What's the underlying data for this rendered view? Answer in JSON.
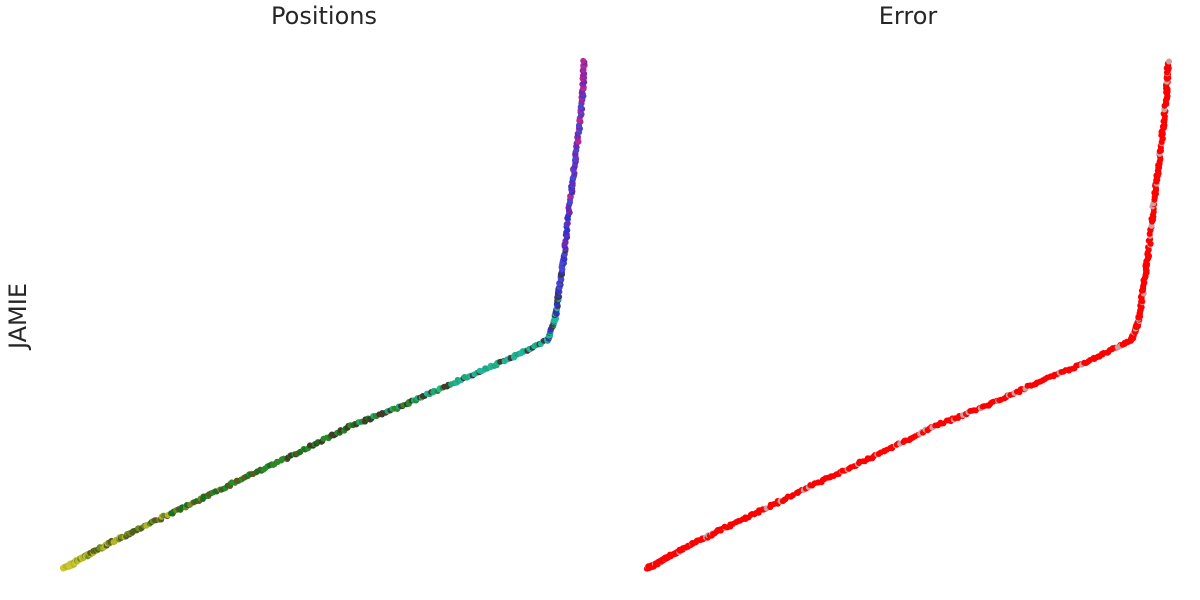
{
  "chart_data": [
    {
      "type": "scatter",
      "title": "Positions",
      "ylabel": "JAMIE",
      "axes_visible": false,
      "grid": false,
      "point_colors": [
        "#c8c832",
        "#b4b428",
        "#6e8c23",
        "#5a5a1e",
        "#1e6e1e",
        "#2a8a2a",
        "#3c3c28",
        "#1fa87a",
        "#23b4a0",
        "#3c3c3c",
        "#3232c8",
        "#4646d2",
        "#6e28b4",
        "#b42896",
        "#8c28a0"
      ],
      "x": [
        0.0,
        0.016,
        0.035,
        0.08,
        0.15,
        0.25,
        0.35,
        0.45,
        0.55,
        0.65,
        0.75,
        0.85,
        0.93,
        0.944,
        0.952,
        0.962,
        0.975,
        0.985,
        0.997,
        1.0
      ],
      "y": [
        0.0,
        0.008,
        0.02,
        0.045,
        0.08,
        0.13,
        0.18,
        0.228,
        0.28,
        0.32,
        0.367,
        0.41,
        0.45,
        0.49,
        0.55,
        0.62,
        0.74,
        0.82,
        0.926,
        1.0
      ]
    },
    {
      "type": "scatter",
      "title": "Error",
      "axes_visible": false,
      "grid": false,
      "point_colors": [
        "#ff0000",
        "#c8a0a0"
      ],
      "x": [
        0.0,
        0.016,
        0.035,
        0.08,
        0.15,
        0.25,
        0.35,
        0.45,
        0.55,
        0.65,
        0.75,
        0.85,
        0.93,
        0.944,
        0.952,
        0.962,
        0.975,
        0.985,
        0.997,
        1.0
      ],
      "y": [
        0.0,
        0.008,
        0.02,
        0.045,
        0.08,
        0.13,
        0.18,
        0.228,
        0.28,
        0.32,
        0.367,
        0.41,
        0.45,
        0.49,
        0.55,
        0.62,
        0.74,
        0.82,
        0.926,
        1.0
      ]
    }
  ]
}
